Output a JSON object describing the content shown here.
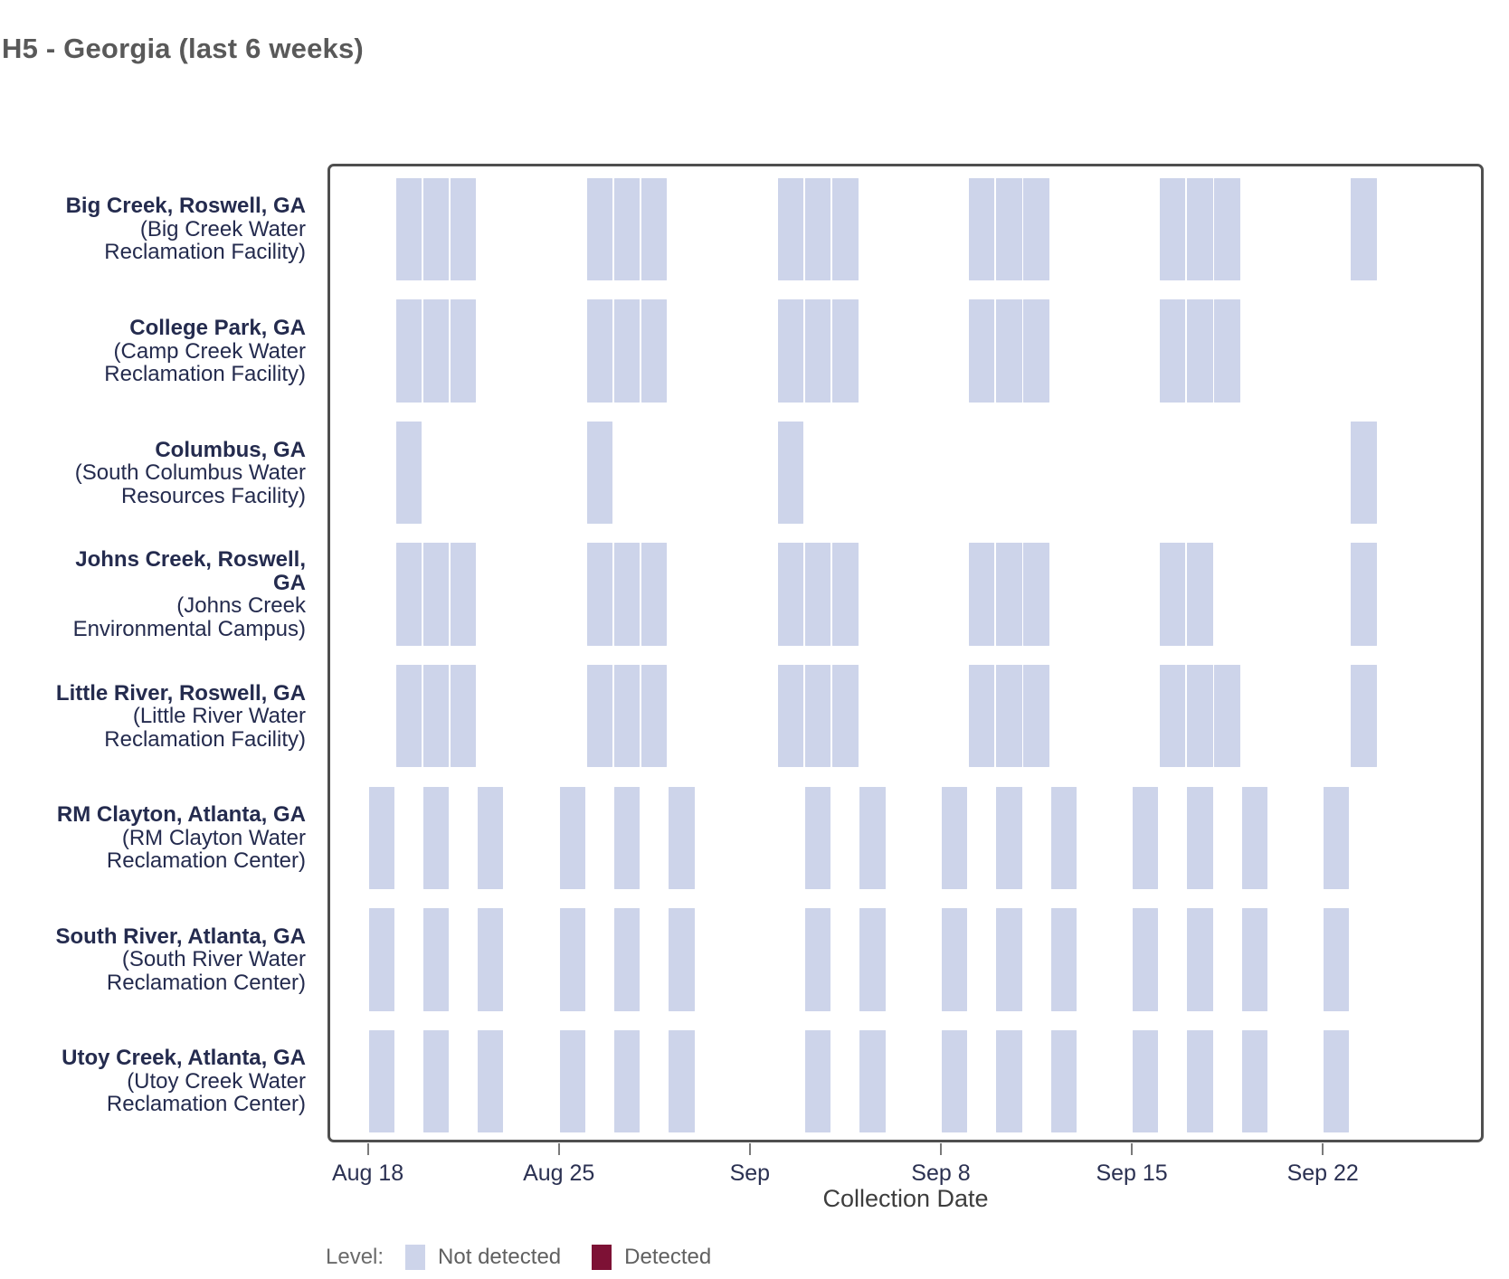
{
  "page_title": "H5 - Georgia (last 6 weeks)",
  "chart_data": {
    "type": "heatmap",
    "title": "H5 - Georgia (last 6 weeks)",
    "xlabel": "Collection Date",
    "x_tick_labels": [
      "Aug 18",
      "Aug 25",
      "Sep",
      "Sep 8",
      "Sep 15",
      "Sep 22"
    ],
    "grid": "off",
    "legend_position": "bottom-left",
    "legend": {
      "title": "Level:",
      "items": [
        {
          "label": "Not detected",
          "color": "#cdd4ea"
        },
        {
          "label": "Detected",
          "color": "#7d1135"
        }
      ]
    },
    "rows": [
      {
        "name_lines": [
          "Big Creek, Roswell, GA"
        ],
        "facility_lines": [
          "(Big Creek Water",
          "Reclamation Facility)"
        ],
        "level": "Not detected",
        "dates": [
          "Aug 19",
          "Aug 20",
          "Aug 21",
          "Aug 26",
          "Aug 27",
          "Aug 28",
          "Sep 2",
          "Sep 3",
          "Sep 4",
          "Sep 9",
          "Sep 10",
          "Sep 11",
          "Sep 16",
          "Sep 17",
          "Sep 18",
          "Sep 23"
        ]
      },
      {
        "name_lines": [
          "College Park, GA"
        ],
        "facility_lines": [
          "(Camp Creek Water",
          "Reclamation Facility)"
        ],
        "level": "Not detected",
        "dates": [
          "Aug 19",
          "Aug 20",
          "Aug 21",
          "Aug 26",
          "Aug 27",
          "Aug 28",
          "Sep 2",
          "Sep 3",
          "Sep 4",
          "Sep 9",
          "Sep 10",
          "Sep 11",
          "Sep 16",
          "Sep 17",
          "Sep 18"
        ]
      },
      {
        "name_lines": [
          "Columbus, GA"
        ],
        "facility_lines": [
          "(South Columbus Water",
          "Resources Facility)"
        ],
        "level": "Not detected",
        "dates": [
          "Aug 19",
          "Aug 26",
          "Sep 2",
          "Sep 23"
        ]
      },
      {
        "name_lines": [
          "Johns Creek, Roswell,",
          "GA"
        ],
        "facility_lines": [
          "(Johns Creek",
          "Environmental Campus)"
        ],
        "level": "Not detected",
        "dates": [
          "Aug 19",
          "Aug 20",
          "Aug 21",
          "Aug 26",
          "Aug 27",
          "Aug 28",
          "Sep 2",
          "Sep 3",
          "Sep 4",
          "Sep 9",
          "Sep 10",
          "Sep 11",
          "Sep 16",
          "Sep 17",
          "Sep 23"
        ]
      },
      {
        "name_lines": [
          "Little River, Roswell, GA"
        ],
        "facility_lines": [
          "(Little River Water",
          "Reclamation Facility)"
        ],
        "level": "Not detected",
        "dates": [
          "Aug 19",
          "Aug 20",
          "Aug 21",
          "Aug 26",
          "Aug 27",
          "Aug 28",
          "Sep 2",
          "Sep 3",
          "Sep 4",
          "Sep 9",
          "Sep 10",
          "Sep 11",
          "Sep 16",
          "Sep 17",
          "Sep 18",
          "Sep 23"
        ]
      },
      {
        "name_lines": [
          "RM Clayton, Atlanta, GA"
        ],
        "facility_lines": [
          "(RM Clayton Water",
          "Reclamation Center)"
        ],
        "level": "Not detected",
        "dates": [
          "Aug 18",
          "Aug 20",
          "Aug 22",
          "Aug 25",
          "Aug 27",
          "Aug 29",
          "Sep 3",
          "Sep 5",
          "Sep 8",
          "Sep 10",
          "Sep 12",
          "Sep 15",
          "Sep 17",
          "Sep 19",
          "Sep 22"
        ]
      },
      {
        "name_lines": [
          "South River, Atlanta, GA"
        ],
        "facility_lines": [
          "(South River Water",
          "Reclamation Center)"
        ],
        "level": "Not detected",
        "dates": [
          "Aug 18",
          "Aug 20",
          "Aug 22",
          "Aug 25",
          "Aug 27",
          "Aug 29",
          "Sep 3",
          "Sep 5",
          "Sep 8",
          "Sep 10",
          "Sep 12",
          "Sep 15",
          "Sep 17",
          "Sep 19",
          "Sep 22"
        ]
      },
      {
        "name_lines": [
          "Utoy Creek, Atlanta, GA"
        ],
        "facility_lines": [
          "(Utoy Creek Water",
          "Reclamation Center)"
        ],
        "level": "Not detected",
        "dates": [
          "Aug 18",
          "Aug 20",
          "Aug 22",
          "Aug 25",
          "Aug 27",
          "Aug 29",
          "Sep 3",
          "Sep 5",
          "Sep 8",
          "Sep 10",
          "Sep 12",
          "Sep 15",
          "Sep 17",
          "Sep 19",
          "Sep 22"
        ]
      }
    ]
  }
}
